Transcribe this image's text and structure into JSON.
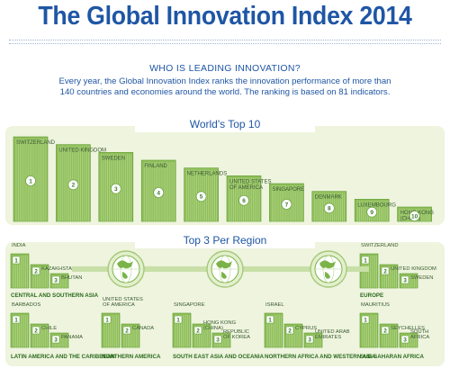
{
  "title": "The Global Innovation Index 2014",
  "lead": {
    "heading": "WHO IS LEADING INNOVATION?",
    "line1": "Every year, the Global Innovation Index ranks the innovation performance of more than",
    "line2": "140 countries and economies around the world. The ranking is based on 81 indicators.",
    "line3": ""
  },
  "colors": {
    "title": "#1f56a5",
    "bar": "#8fbe5a",
    "bar_dark": "#5d9a2f",
    "panel": "#eef4dd",
    "badge_text": "#3a7a2c"
  },
  "chart_data": [
    {
      "type": "bar",
      "title": "World's Top 10",
      "categories": [
        "SWITZERLAND",
        "UNITED KINGDOM",
        "SWEDEN",
        "FINLAND",
        "NETHERLANDS",
        "UNITED STATES OF AMERICA",
        "SINGAPORE",
        "DENMARK",
        "LUXEMBOURG",
        "HONG KONG (CHINA)"
      ],
      "label_lines": [
        [
          "SWITZERLAND"
        ],
        [
          "UNITED KINGDOM"
        ],
        [
          "SWEDEN"
        ],
        [
          "FINLAND"
        ],
        [
          "NETHERLANDS"
        ],
        [
          "UNITED STATES",
          "OF AMERICA"
        ],
        [
          "SINGAPORE"
        ],
        [
          "DENMARK"
        ],
        [
          "LUXEMBOURG"
        ],
        [
          "HONG KONG",
          "(CHINA)"
        ]
      ],
      "ranks": [
        1,
        2,
        3,
        4,
        5,
        6,
        7,
        8,
        9,
        10
      ],
      "values": [
        10,
        9,
        8,
        7,
        6,
        5,
        4,
        3,
        2,
        1
      ]
    },
    {
      "type": "bar",
      "title": "Top 3 Per Region",
      "regions": [
        {
          "name": "CENTRAL AND SOUTHERN ASIA",
          "countries": [
            [
              "INDIA"
            ],
            [
              "KAZAKHSTAN"
            ],
            [
              "BHUTAN"
            ]
          ],
          "ranks": [
            1,
            2,
            3
          ]
        },
        {
          "name": "EUROPE",
          "countries": [
            [
              "SWITZERLAND"
            ],
            [
              "UNITED KINGDOM"
            ],
            [
              "SWEDEN"
            ]
          ],
          "ranks": [
            1,
            2,
            3
          ]
        },
        {
          "name": "LATIN AMERICA AND THE CARIBBEAN",
          "countries": [
            [
              "BARBADOS"
            ],
            [
              "CHILE"
            ],
            [
              "PANAMA"
            ]
          ],
          "ranks": [
            1,
            2,
            3
          ]
        },
        {
          "name": "NORTHERN AMERICA",
          "countries": [
            [
              "UNITED STATES",
              "OF AMERICA"
            ],
            [
              "CANADA"
            ]
          ],
          "ranks": [
            1,
            2
          ]
        },
        {
          "name": "SOUTH EAST ASIA AND OCEANIA",
          "countries": [
            [
              "SINGAPORE"
            ],
            [
              "HONG KONG",
              "(CHINA)"
            ],
            [
              "REPUBLIC",
              "OF KOREA"
            ]
          ],
          "ranks": [
            1,
            2,
            3
          ]
        },
        {
          "name": "NORTHERN AFRICA AND WESTERN ASIA",
          "countries": [
            [
              "ISRAEL"
            ],
            [
              "CYPRUS"
            ],
            [
              "UNITED ARAB",
              "EMIRATES"
            ]
          ],
          "ranks": [
            1,
            2,
            3
          ]
        },
        {
          "name": "SUB-SAHARAN AFRICA",
          "countries": [
            [
              "MAURITIUS"
            ],
            [
              "SEYCHELLES"
            ],
            [
              "SOUTH",
              "AFRICA"
            ]
          ],
          "ranks": [
            1,
            2,
            3
          ]
        }
      ]
    }
  ],
  "globes": [
    "globe-icon",
    "globe-icon",
    "globe-icon"
  ]
}
